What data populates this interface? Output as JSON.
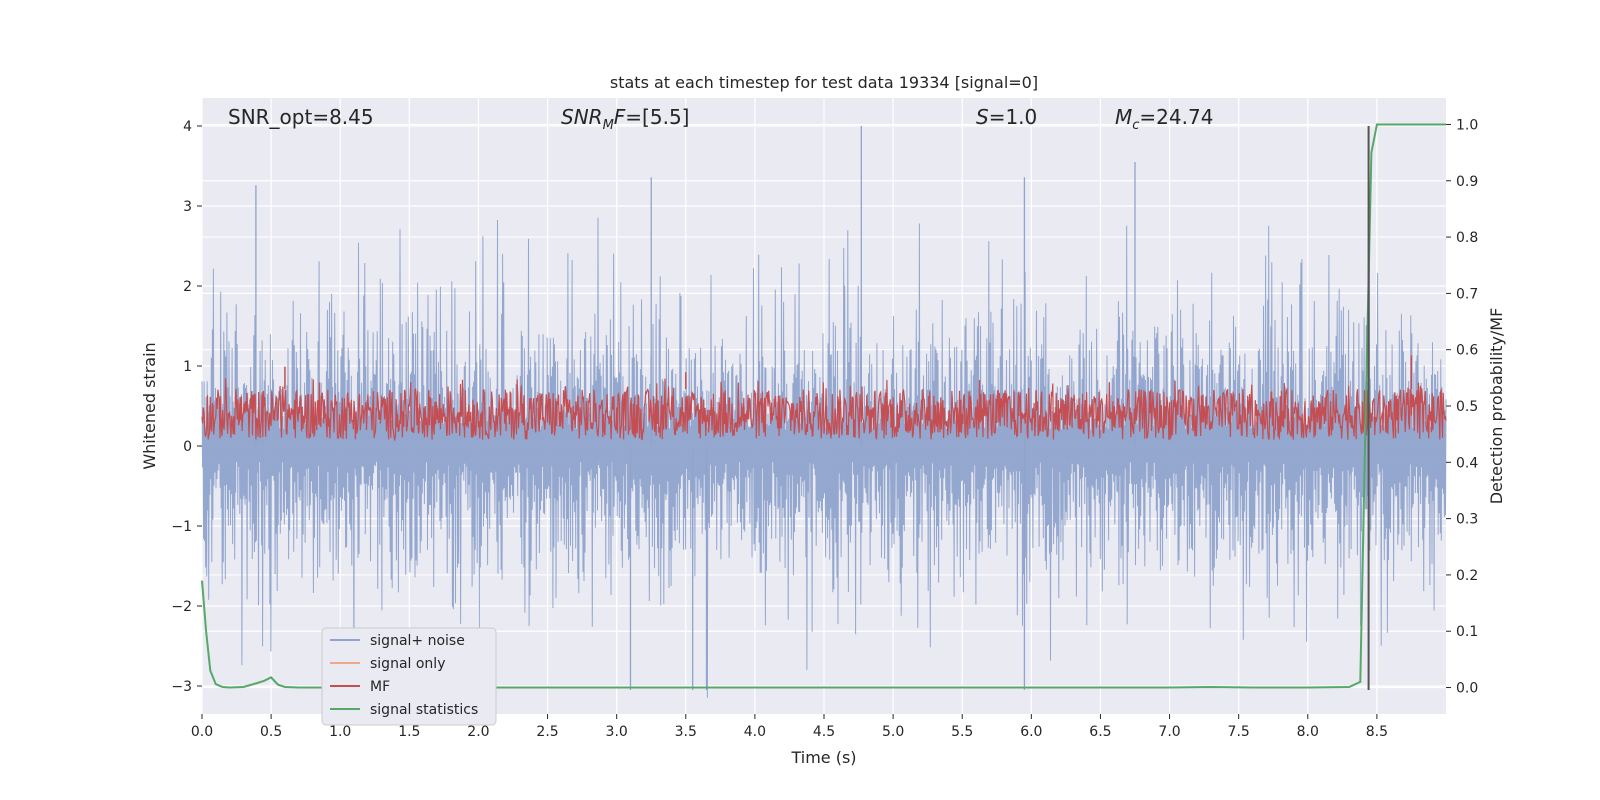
{
  "chart_data": {
    "type": "line",
    "title": "stats at each timestep for test data 19334 [signal=0]",
    "xlabel": "Time (s)",
    "ylabel_left": "Whitened strain",
    "ylabel_right": "Detection probability/MF",
    "xlim": [
      0,
      9.0
    ],
    "ylim_left": [
      -3.35,
      4.35
    ],
    "ylim_right": [
      -0.047,
      1.047
    ],
    "x_ticks": [
      0.0,
      0.5,
      1.0,
      1.5,
      2.0,
      2.5,
      3.0,
      3.5,
      4.0,
      4.5,
      5.0,
      5.5,
      6.0,
      6.5,
      7.0,
      7.5,
      8.0,
      8.5
    ],
    "x_tick_labels": [
      "0.0",
      "0.5",
      "1.0",
      "1.5",
      "2.0",
      "2.5",
      "3.0",
      "3.5",
      "4.0",
      "4.5",
      "5.0",
      "5.5",
      "6.0",
      "6.5",
      "7.0",
      "7.5",
      "8.0",
      "8.5"
    ],
    "y_left_ticks": [
      -3,
      -2,
      -1,
      0,
      1,
      2,
      3,
      4
    ],
    "y_left_tick_labels": [
      "−3",
      "−2",
      "−1",
      "0",
      "1",
      "2",
      "3",
      "4"
    ],
    "y_right_ticks": [
      0.0,
      0.1,
      0.2,
      0.3,
      0.4,
      0.5,
      0.6,
      0.7,
      0.8,
      0.9,
      1.0
    ],
    "y_right_tick_labels": [
      "0.0",
      "0.1",
      "0.2",
      "0.3",
      "0.4",
      "0.5",
      "0.6",
      "0.7",
      "0.8",
      "0.9",
      "1.0"
    ],
    "annotations": {
      "snr_opt": "SNR_opt=8.45",
      "snr_mf": "=[5.5]",
      "s": "=1.0",
      "mc": "=24.74"
    },
    "series": [
      {
        "name": "signal+ noise",
        "color": "#8fa3cc",
        "axis": "left",
        "description": "whitened noise, dense oscillation",
        "envelope_typical": [
          -1.6,
          1.9
        ],
        "extreme_peaks": [
          {
            "x": 0.39,
            "y": 3.26
          },
          {
            "x": 3.25,
            "y": 3.36
          },
          {
            "x": 4.77,
            "y": 4.0
          },
          {
            "x": 5.95,
            "y": 3.36
          },
          {
            "x": 6.75,
            "y": 3.55
          },
          {
            "x": 3.55,
            "y": -3.05
          },
          {
            "x": 3.65,
            "y": -3.05
          },
          {
            "x": 5.95,
            "y": -3.05
          },
          {
            "x": 3.1,
            "y": -3.05
          }
        ]
      },
      {
        "name": "signal only",
        "color": "#f0a988",
        "axis": "left",
        "values": []
      },
      {
        "name": "MF",
        "color": "#c44e52",
        "axis": "right",
        "band": [
          0.44,
          0.53
        ],
        "spikes": [
          {
            "x": 0.6,
            "y": 0.57
          },
          {
            "x": 3.5,
            "y": 0.56
          },
          {
            "x": 8.75,
            "y": 0.59
          }
        ]
      },
      {
        "name": "signal statistics",
        "color": "#55a868",
        "axis": "right",
        "x": [
          0.0,
          0.03,
          0.06,
          0.1,
          0.15,
          0.2,
          0.3,
          0.4,
          0.45,
          0.5,
          0.55,
          0.6,
          0.7,
          1.0,
          2.0,
          3.0,
          4.0,
          5.0,
          6.0,
          7.0,
          7.3,
          7.6,
          8.0,
          8.3,
          8.38,
          8.42,
          8.46,
          8.5,
          8.6,
          9.0
        ],
        "values": [
          0.19,
          0.1,
          0.03,
          0.006,
          0.001,
          0.0,
          0.001,
          0.008,
          0.012,
          0.018,
          0.005,
          0.001,
          0.0,
          0.0,
          0.0,
          0.0,
          0.0,
          0.0,
          0.0,
          0.0,
          0.001,
          0.0,
          0.0,
          0.001,
          0.01,
          0.5,
          0.95,
          1.0,
          1.0,
          1.0
        ]
      }
    ],
    "vertical_line": {
      "x": 8.44,
      "y_range": [
        -3.05,
        4.0
      ],
      "color": "#555555"
    },
    "legend": {
      "position": "lower-left",
      "entries": [
        "signal+ noise",
        "signal only",
        "MF",
        "signal statistics"
      ]
    }
  }
}
